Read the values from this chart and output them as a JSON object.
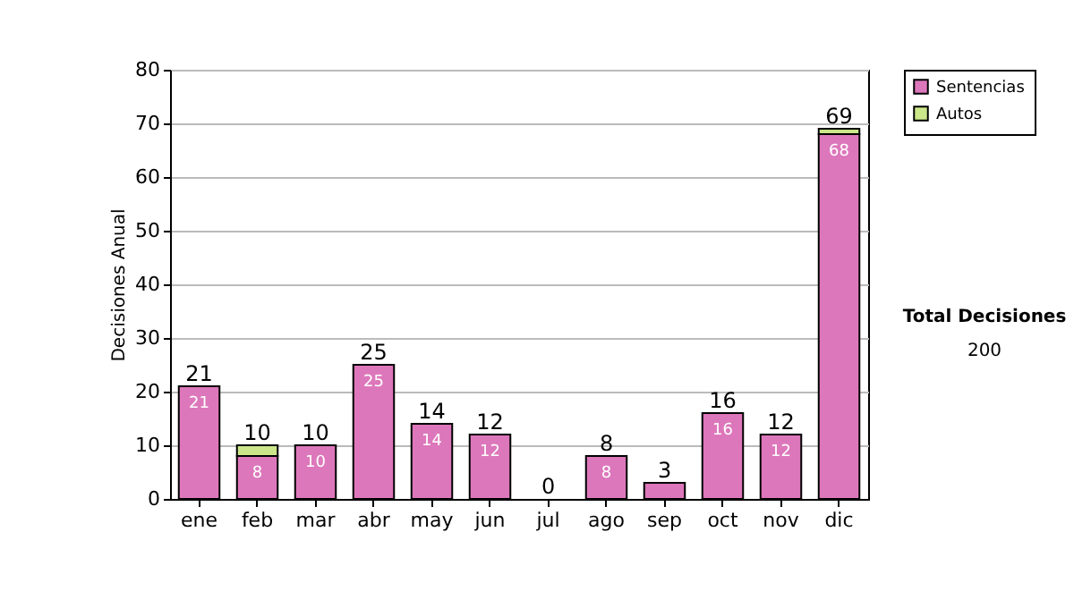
{
  "chart_data": {
    "type": "bar",
    "stacked": true,
    "ylabel": "Decisiones Anual",
    "categories": [
      "ene",
      "feb",
      "mar",
      "abr",
      "may",
      "jun",
      "jul",
      "ago",
      "sep",
      "oct",
      "nov",
      "dic"
    ],
    "series": [
      {
        "name": "Sentencias",
        "color": "#dd77bb",
        "values": [
          21,
          8,
          10,
          25,
          14,
          12,
          0,
          8,
          3,
          16,
          12,
          68
        ],
        "value_labels": [
          "21",
          "8",
          "10",
          "25",
          "14",
          "12",
          null,
          "8",
          null,
          "16",
          "12",
          "68"
        ]
      },
      {
        "name": "Autos",
        "color": "#cce68a",
        "values": [
          null,
          2,
          null,
          null,
          null,
          null,
          null,
          null,
          null,
          null,
          null,
          1
        ]
      }
    ],
    "totals": [
      "21",
      "10",
      "10",
      "25",
      "14",
      "12",
      "0",
      "8",
      "3",
      "16",
      "12",
      "69"
    ],
    "ylim": [
      0,
      80
    ],
    "yticks": [
      0,
      10,
      20,
      30,
      40,
      50,
      60,
      70,
      80
    ],
    "grid": "y",
    "legend": "right",
    "annotations": [
      "Total Decisiones",
      "200"
    ]
  }
}
